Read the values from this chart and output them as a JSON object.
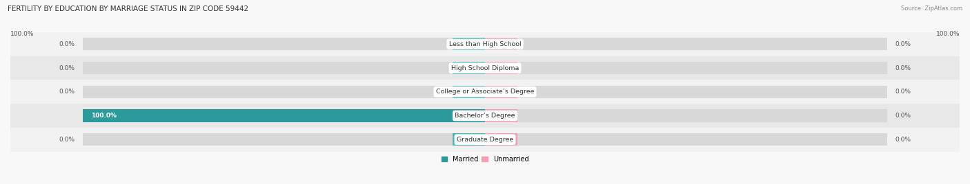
{
  "title": "FERTILITY BY EDUCATION BY MARRIAGE STATUS IN ZIP CODE 59442",
  "source": "Source: ZipAtlas.com",
  "categories": [
    "Less than High School",
    "High School Diploma",
    "College or Associate’s Degree",
    "Bachelor’s Degree",
    "Graduate Degree"
  ],
  "married_values": [
    0.0,
    0.0,
    0.0,
    100.0,
    0.0
  ],
  "unmarried_values": [
    0.0,
    0.0,
    0.0,
    0.0,
    0.0
  ],
  "married_color": "#4db8b8",
  "married_color_dark": "#2a9a9a",
  "unmarried_color": "#f4a0b5",
  "bar_bg_color": "#e0e0e0",
  "row_bg_light": "#f2f2f2",
  "row_bg_dark": "#e8e8e8",
  "max_value": 100.0,
  "stub_size": 8.0,
  "figsize": [
    14.06,
    2.68
  ],
  "dpi": 100
}
